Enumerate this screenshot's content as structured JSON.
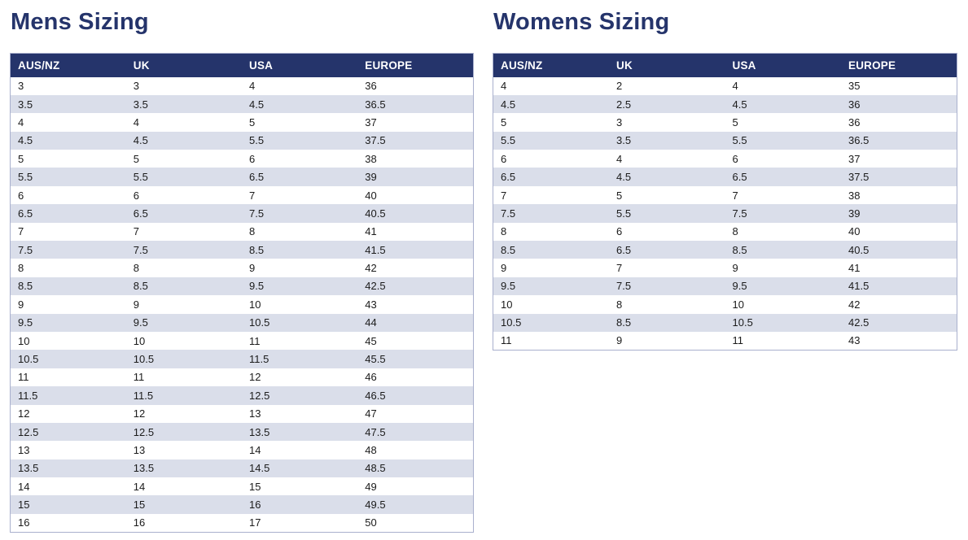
{
  "columns": [
    "AUS/NZ",
    "UK",
    "USA",
    "EUROPE"
  ],
  "mens": {
    "title": "Mens Sizing",
    "rows": [
      [
        "3",
        "3",
        "4",
        "36"
      ],
      [
        "3.5",
        "3.5",
        "4.5",
        "36.5"
      ],
      [
        "4",
        "4",
        "5",
        "37"
      ],
      [
        "4.5",
        "4.5",
        "5.5",
        "37.5"
      ],
      [
        "5",
        "5",
        "6",
        "38"
      ],
      [
        "5.5",
        "5.5",
        "6.5",
        "39"
      ],
      [
        "6",
        "6",
        "7",
        "40"
      ],
      [
        "6.5",
        "6.5",
        "7.5",
        "40.5"
      ],
      [
        "7",
        "7",
        "8",
        "41"
      ],
      [
        "7.5",
        "7.5",
        "8.5",
        "41.5"
      ],
      [
        "8",
        "8",
        "9",
        "42"
      ],
      [
        "8.5",
        "8.5",
        "9.5",
        "42.5"
      ],
      [
        "9",
        "9",
        "10",
        "43"
      ],
      [
        "9.5",
        "9.5",
        "10.5",
        "44"
      ],
      [
        "10",
        "10",
        "11",
        "45"
      ],
      [
        "10.5",
        "10.5",
        "11.5",
        "45.5"
      ],
      [
        "11",
        "11",
        "12",
        "46"
      ],
      [
        "11.5",
        "11.5",
        "12.5",
        "46.5"
      ],
      [
        "12",
        "12",
        "13",
        "47"
      ],
      [
        "12.5",
        "12.5",
        "13.5",
        "47.5"
      ],
      [
        "13",
        "13",
        "14",
        "48"
      ],
      [
        "13.5",
        "13.5",
        "14.5",
        "48.5"
      ],
      [
        "14",
        "14",
        "15",
        "49"
      ],
      [
        "15",
        "15",
        "16",
        "49.5"
      ],
      [
        "16",
        "16",
        "17",
        "50"
      ]
    ]
  },
  "womens": {
    "title": "Womens Sizing",
    "rows": [
      [
        "4",
        "2",
        "4",
        "35"
      ],
      [
        "4.5",
        "2.5",
        "4.5",
        "36"
      ],
      [
        "5",
        "3",
        "5",
        "36"
      ],
      [
        "5.5",
        "3.5",
        "5.5",
        "36.5"
      ],
      [
        "6",
        "4",
        "6",
        "37"
      ],
      [
        "6.5",
        "4.5",
        "6.5",
        "37.5"
      ],
      [
        "7",
        "5",
        "7",
        "38"
      ],
      [
        "7.5",
        "5.5",
        "7.5",
        "39"
      ],
      [
        "8",
        "6",
        "8",
        "40"
      ],
      [
        "8.5",
        "6.5",
        "8.5",
        "40.5"
      ],
      [
        "9",
        "7",
        "9",
        "41"
      ],
      [
        "9.5",
        "7.5",
        "9.5",
        "41.5"
      ],
      [
        "10",
        "8",
        "10",
        "42"
      ],
      [
        "10.5",
        "8.5",
        "10.5",
        "42.5"
      ],
      [
        "11",
        "9",
        "11",
        "43"
      ]
    ]
  },
  "colors": {
    "header_bg": "#25346b",
    "header_text": "#ffffff",
    "stripe": "#dadeea",
    "border": "#a9b0cd",
    "title": "#25346b"
  }
}
